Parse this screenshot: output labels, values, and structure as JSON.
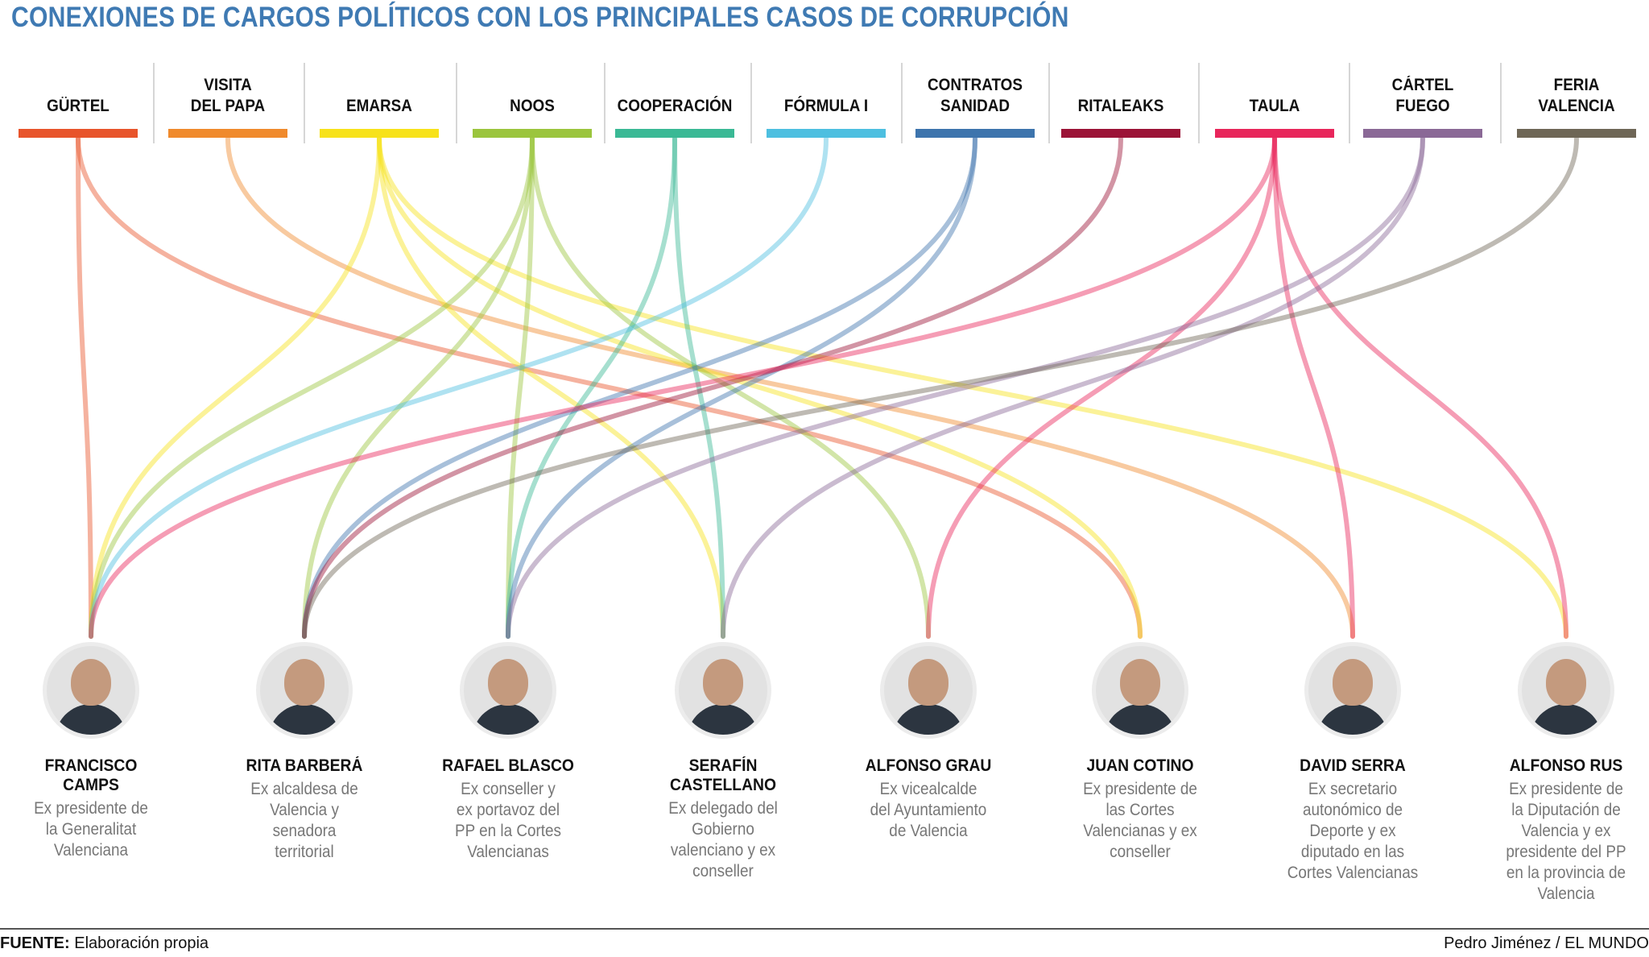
{
  "title": "CONEXIONES DE CARGOS POLÍTICOS CON LOS PRINCIPALES CASOS DE CORRUPCIÓN",
  "cases": [
    {
      "label": "GÜRTEL",
      "color": "#e8542b"
    },
    {
      "label": "VISITA\nDEL PAPA",
      "color": "#f08a2c"
    },
    {
      "label": "EMARSA",
      "color": "#f7e21a"
    },
    {
      "label": "NOOS",
      "color": "#9bc53d"
    },
    {
      "label": "COOPERACIÓN",
      "color": "#3ab995"
    },
    {
      "label": "FÓRMULA I",
      "color": "#4dbfe0"
    },
    {
      "label": "CONTRATOS\nSANIDAD",
      "color": "#3d74ad"
    },
    {
      "label": "RITALEAKS",
      "color": "#9b1236"
    },
    {
      "label": "TAULA",
      "color": "#e8265b"
    },
    {
      "label": "CÁRTEL\nFUEGO",
      "color": "#8a6896"
    },
    {
      "label": "FERIA\nVALENCIA",
      "color": "#6e6656"
    }
  ],
  "people": [
    {
      "name": "FRANCISCO\nCAMPS",
      "desc": "Ex presidente de\nla Generalitat\nValenciana",
      "photo": "portrait-francisco-camps"
    },
    {
      "name": "RITA BARBERÁ",
      "desc": "Ex alcaldesa de\nValencia y\nsenadora\nterritorial",
      "photo": "portrait-rita-barbera"
    },
    {
      "name": "RAFAEL BLASCO",
      "desc": "Ex conseller y\nex portavoz del\nPP en la Cortes\nValencianas",
      "photo": "portrait-rafael-blasco"
    },
    {
      "name": "SERAFÍN\nCASTELLANO",
      "desc": "Ex delegado del\nGobierno\nvalenciano y ex\nconseller",
      "photo": "portrait-serafin-castellano"
    },
    {
      "name": "ALFONSO GRAU",
      "desc": "Ex vicealcalde\ndel Ayuntamiento\nde Valencia",
      "photo": "portrait-alfonso-grau"
    },
    {
      "name": "JUAN COTINO",
      "desc": "Ex presidente de\nlas Cortes\nValencianas y ex\nconseller",
      "photo": "portrait-juan-cotino"
    },
    {
      "name": "DAVID SERRA",
      "desc": "Ex secretario\nautonómico de\nDeporte y ex\ndiputado en las\nCortes Valencianas",
      "photo": "portrait-david-serra"
    },
    {
      "name": "ALFONSO RUS",
      "desc": "Ex presidente de\nla Diputación de\nValencia y ex\npresidente del PP\nen la provincia de\nValencia",
      "photo": "portrait-alfonso-rus"
    }
  ],
  "links": [
    {
      "case": 0,
      "person": 0
    },
    {
      "case": 0,
      "person": 5
    },
    {
      "case": 1,
      "person": 6
    },
    {
      "case": 2,
      "person": 0
    },
    {
      "case": 2,
      "person": 3
    },
    {
      "case": 2,
      "person": 5
    },
    {
      "case": 2,
      "person": 7
    },
    {
      "case": 3,
      "person": 0
    },
    {
      "case": 3,
      "person": 1
    },
    {
      "case": 3,
      "person": 2
    },
    {
      "case": 3,
      "person": 4
    },
    {
      "case": 4,
      "person": 2
    },
    {
      "case": 4,
      "person": 3
    },
    {
      "case": 5,
      "person": 0
    },
    {
      "case": 6,
      "person": 1
    },
    {
      "case": 6,
      "person": 2
    },
    {
      "case": 7,
      "person": 1
    },
    {
      "case": 8,
      "person": 0
    },
    {
      "case": 8,
      "person": 4
    },
    {
      "case": 8,
      "person": 6
    },
    {
      "case": 8,
      "person": 7
    },
    {
      "case": 9,
      "person": 2
    },
    {
      "case": 9,
      "person": 3
    },
    {
      "case": 10,
      "person": 1
    }
  ],
  "footer": {
    "source_label": "FUENTE:",
    "source_text": "Elaboración propia",
    "credit": "Pedro Jiménez / EL MUNDO"
  }
}
